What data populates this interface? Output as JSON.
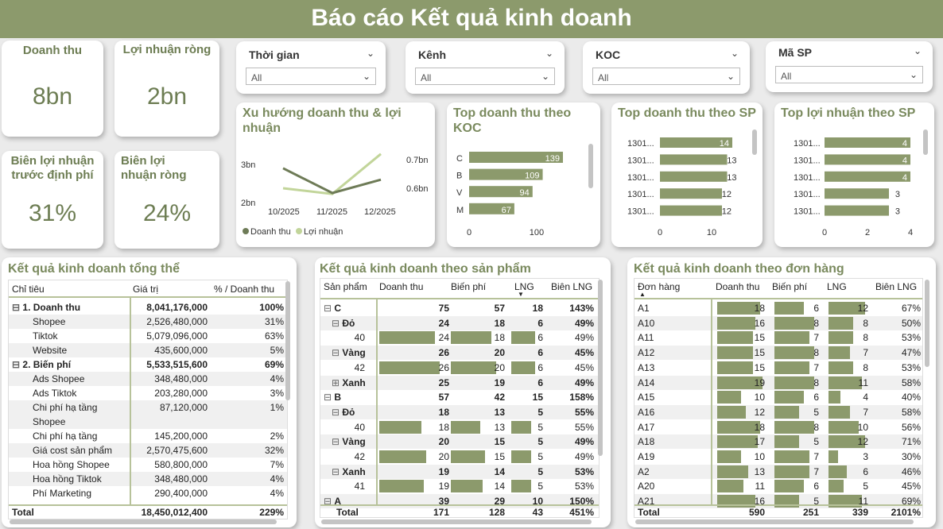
{
  "title": "Báo cáo Kết quả kinh doanh",
  "kpis": [
    {
      "label": "Doanh thu",
      "value": "8bn"
    },
    {
      "label": "Lợi nhuận ròng",
      "value": "2bn"
    },
    {
      "label": "Biên lợi nhuận trước định phí",
      "value": "31%"
    },
    {
      "label": "Biên lợi nhuận ròng",
      "value": "24%"
    }
  ],
  "slicers": [
    {
      "label": "Thời gian",
      "value": "All"
    },
    {
      "label": "Kênh",
      "value": "All"
    },
    {
      "label": "KOC",
      "value": "All"
    },
    {
      "label": "Mã SP",
      "value": "All"
    }
  ],
  "trend": {
    "title": "Xu hướng doanh thu & lợi nhuận",
    "yleft": [
      "3bn",
      "2bn"
    ],
    "yright": [
      "0.7bn",
      "0.6bn"
    ],
    "x": [
      "10/2025",
      "11/2025",
      "12/2025"
    ],
    "legend": [
      "Doanh thu",
      "Lợi nhuận"
    ]
  },
  "koc": {
    "title": "Top doanh thu theo KOC",
    "cats": [
      "C",
      "B",
      "V",
      "M"
    ],
    "values": [
      139,
      109,
      94,
      67
    ],
    "ticks": [
      "0",
      "100"
    ]
  },
  "sp_rev": {
    "title": "Top doanh thu theo SP",
    "cats": [
      "1301...",
      "1301...",
      "1301...",
      "1301...",
      "1301..."
    ],
    "values": [
      14,
      13,
      13,
      12,
      12
    ],
    "ticks": [
      "0",
      "10"
    ]
  },
  "sp_profit": {
    "title": "Top lợi nhuận theo SP",
    "cats": [
      "1301...",
      "1301...",
      "1301...",
      "1301...",
      "1301..."
    ],
    "values": [
      4,
      4,
      4,
      3,
      3
    ],
    "ticks": [
      "0",
      "2",
      "4"
    ]
  },
  "overall": {
    "title": "Kết quả kinh doanh tổng thể",
    "headers": [
      "Chỉ tiêu",
      "Giá trị",
      "% / Doanh thu"
    ],
    "rows": [
      {
        "n": "1. Doanh thu",
        "v": "8,041,176,000",
        "p": "100%",
        "lvl": 0
      },
      {
        "n": "Shopee",
        "v": "2,526,480,000",
        "p": "31%",
        "lvl": 1
      },
      {
        "n": "Tiktok",
        "v": "5,079,096,000",
        "p": "63%",
        "lvl": 1
      },
      {
        "n": "Website",
        "v": "435,600,000",
        "p": "5%",
        "lvl": 1
      },
      {
        "n": "2. Biến phí",
        "v": "5,533,515,600",
        "p": "69%",
        "lvl": 0
      },
      {
        "n": "Ads Shopee",
        "v": "348,480,000",
        "p": "4%",
        "lvl": 1
      },
      {
        "n": "Ads Tiktok",
        "v": "203,280,000",
        "p": "3%",
        "lvl": 1
      },
      {
        "n": "Chi phí hạ tầng",
        "n2": "Shopee",
        "v": "87,120,000",
        "p": "1%",
        "lvl": 1
      },
      {
        "n": "Chi phí hạ tầng",
        "v": "145,200,000",
        "p": "2%",
        "lvl": 1
      },
      {
        "n": "Giá cost sản phẩm",
        "v": "2,570,475,600",
        "p": "32%",
        "lvl": 1
      },
      {
        "n": "Hoa hồng Shopee",
        "v": "580,800,000",
        "p": "7%",
        "lvl": 1
      },
      {
        "n": "Hoa hồng Tiktok",
        "v": "348,480,000",
        "p": "4%",
        "lvl": 1
      },
      {
        "n": "Phí Marketing",
        "v": "290,400,000",
        "p": "4%",
        "lvl": 1
      }
    ],
    "total": {
      "n": "Total",
      "v": "18,450,012,400",
      "p": "229%"
    }
  },
  "by_product": {
    "title": "Kết quả kinh doanh theo sản phẩm",
    "headers": [
      "Sản phẩm",
      "Doanh thu",
      "Biến phí",
      "LNG",
      "Biên LNG"
    ],
    "rows": [
      {
        "n": "C",
        "r": "75",
        "c": "57",
        "l": "18",
        "m": "143%",
        "lvl": 0,
        "s": "⊟",
        "b": true
      },
      {
        "n": "Đỏ",
        "r": "24",
        "c": "18",
        "l": "6",
        "m": "49%",
        "lvl": 1,
        "s": "⊟",
        "b": true
      },
      {
        "n": "40",
        "r": "24",
        "c": "18",
        "l": "6",
        "m": "49%",
        "lvl": 2,
        "bar": true
      },
      {
        "n": "Vàng",
        "r": "26",
        "c": "20",
        "l": "6",
        "m": "45%",
        "lvl": 1,
        "s": "⊟",
        "b": true
      },
      {
        "n": "42",
        "r": "26",
        "c": "20",
        "l": "6",
        "m": "45%",
        "lvl": 2,
        "bar": true
      },
      {
        "n": "Xanh",
        "r": "25",
        "c": "19",
        "l": "6",
        "m": "49%",
        "lvl": 1,
        "s": "⊞",
        "b": true
      },
      {
        "n": "B",
        "r": "57",
        "c": "42",
        "l": "15",
        "m": "158%",
        "lvl": 0,
        "s": "⊟",
        "b": true
      },
      {
        "n": "Đỏ",
        "r": "18",
        "c": "13",
        "l": "5",
        "m": "55%",
        "lvl": 1,
        "s": "⊟",
        "b": true
      },
      {
        "n": "40",
        "r": "18",
        "c": "13",
        "l": "5",
        "m": "55%",
        "lvl": 2,
        "bar": true
      },
      {
        "n": "Vàng",
        "r": "20",
        "c": "15",
        "l": "5",
        "m": "49%",
        "lvl": 1,
        "s": "⊟",
        "b": true
      },
      {
        "n": "42",
        "r": "20",
        "c": "15",
        "l": "5",
        "m": "49%",
        "lvl": 2,
        "bar": true
      },
      {
        "n": "Xanh",
        "r": "19",
        "c": "14",
        "l": "5",
        "m": "53%",
        "lvl": 1,
        "s": "⊟",
        "b": true
      },
      {
        "n": "41",
        "r": "19",
        "c": "14",
        "l": "5",
        "m": "53%",
        "lvl": 2,
        "bar": true
      },
      {
        "n": "A",
        "r": "39",
        "c": "29",
        "l": "10",
        "m": "150%",
        "lvl": 0,
        "s": "⊟",
        "b": true
      }
    ],
    "total": {
      "n": "Total",
      "r": "171",
      "c": "128",
      "l": "43",
      "m": "451%"
    }
  },
  "by_order": {
    "title": "Kết quả kinh doanh theo đơn hàng",
    "headers": [
      "Đơn hàng",
      "Doanh thu",
      "Biến phí",
      "LNG",
      "Biên LNG"
    ],
    "rows": [
      {
        "n": "A1",
        "r": 18,
        "c": 6,
        "l": 12,
        "m": "67%"
      },
      {
        "n": "A10",
        "r": 16,
        "c": 8,
        "l": 8,
        "m": "50%"
      },
      {
        "n": "A11",
        "r": 15,
        "c": 7,
        "l": 8,
        "m": "53%"
      },
      {
        "n": "A12",
        "r": 15,
        "c": 8,
        "l": 7,
        "m": "47%"
      },
      {
        "n": "A13",
        "r": 15,
        "c": 7,
        "l": 8,
        "m": "53%"
      },
      {
        "n": "A14",
        "r": 19,
        "c": 8,
        "l": 11,
        "m": "58%"
      },
      {
        "n": "A15",
        "r": 10,
        "c": 6,
        "l": 4,
        "m": "40%"
      },
      {
        "n": "A16",
        "r": 12,
        "c": 5,
        "l": 7,
        "m": "58%"
      },
      {
        "n": "A17",
        "r": 18,
        "c": 8,
        "l": 10,
        "m": "56%"
      },
      {
        "n": "A18",
        "r": 17,
        "c": 5,
        "l": 12,
        "m": "71%"
      },
      {
        "n": "A19",
        "r": 10,
        "c": 7,
        "l": 3,
        "m": "30%"
      },
      {
        "n": "A2",
        "r": 13,
        "c": 7,
        "l": 6,
        "m": "46%"
      },
      {
        "n": "A20",
        "r": 11,
        "c": 6,
        "l": 5,
        "m": "45%"
      },
      {
        "n": "A21",
        "r": 16,
        "c": 5,
        "l": 11,
        "m": "69%"
      }
    ],
    "total": {
      "n": "Total",
      "r": "590",
      "c": "251",
      "l": "339",
      "m": "2101%"
    }
  },
  "chart_data": [
    {
      "type": "line",
      "title": "Xu hướng doanh thu & lợi nhuận",
      "x": [
        "10/2025",
        "11/2025",
        "12/2025"
      ],
      "series": [
        {
          "name": "Doanh thu",
          "values": [
            2.9,
            2.25,
            2.6
          ]
        },
        {
          "name": "Lợi nhuận",
          "values": [
            0.6,
            0.58,
            0.72
          ]
        }
      ]
    },
    {
      "type": "bar",
      "title": "Top doanh thu theo KOC",
      "categories": [
        "C",
        "B",
        "V",
        "M"
      ],
      "values": [
        139,
        109,
        94,
        67
      ]
    },
    {
      "type": "bar",
      "title": "Top doanh thu theo SP",
      "categories": [
        "1301...",
        "1301...",
        "1301...",
        "1301...",
        "1301..."
      ],
      "values": [
        14,
        13,
        13,
        12,
        12
      ]
    },
    {
      "type": "bar",
      "title": "Top lợi nhuận theo SP",
      "categories": [
        "1301...",
        "1301...",
        "1301...",
        "1301...",
        "1301..."
      ],
      "values": [
        4,
        4,
        4,
        3,
        3
      ]
    }
  ]
}
